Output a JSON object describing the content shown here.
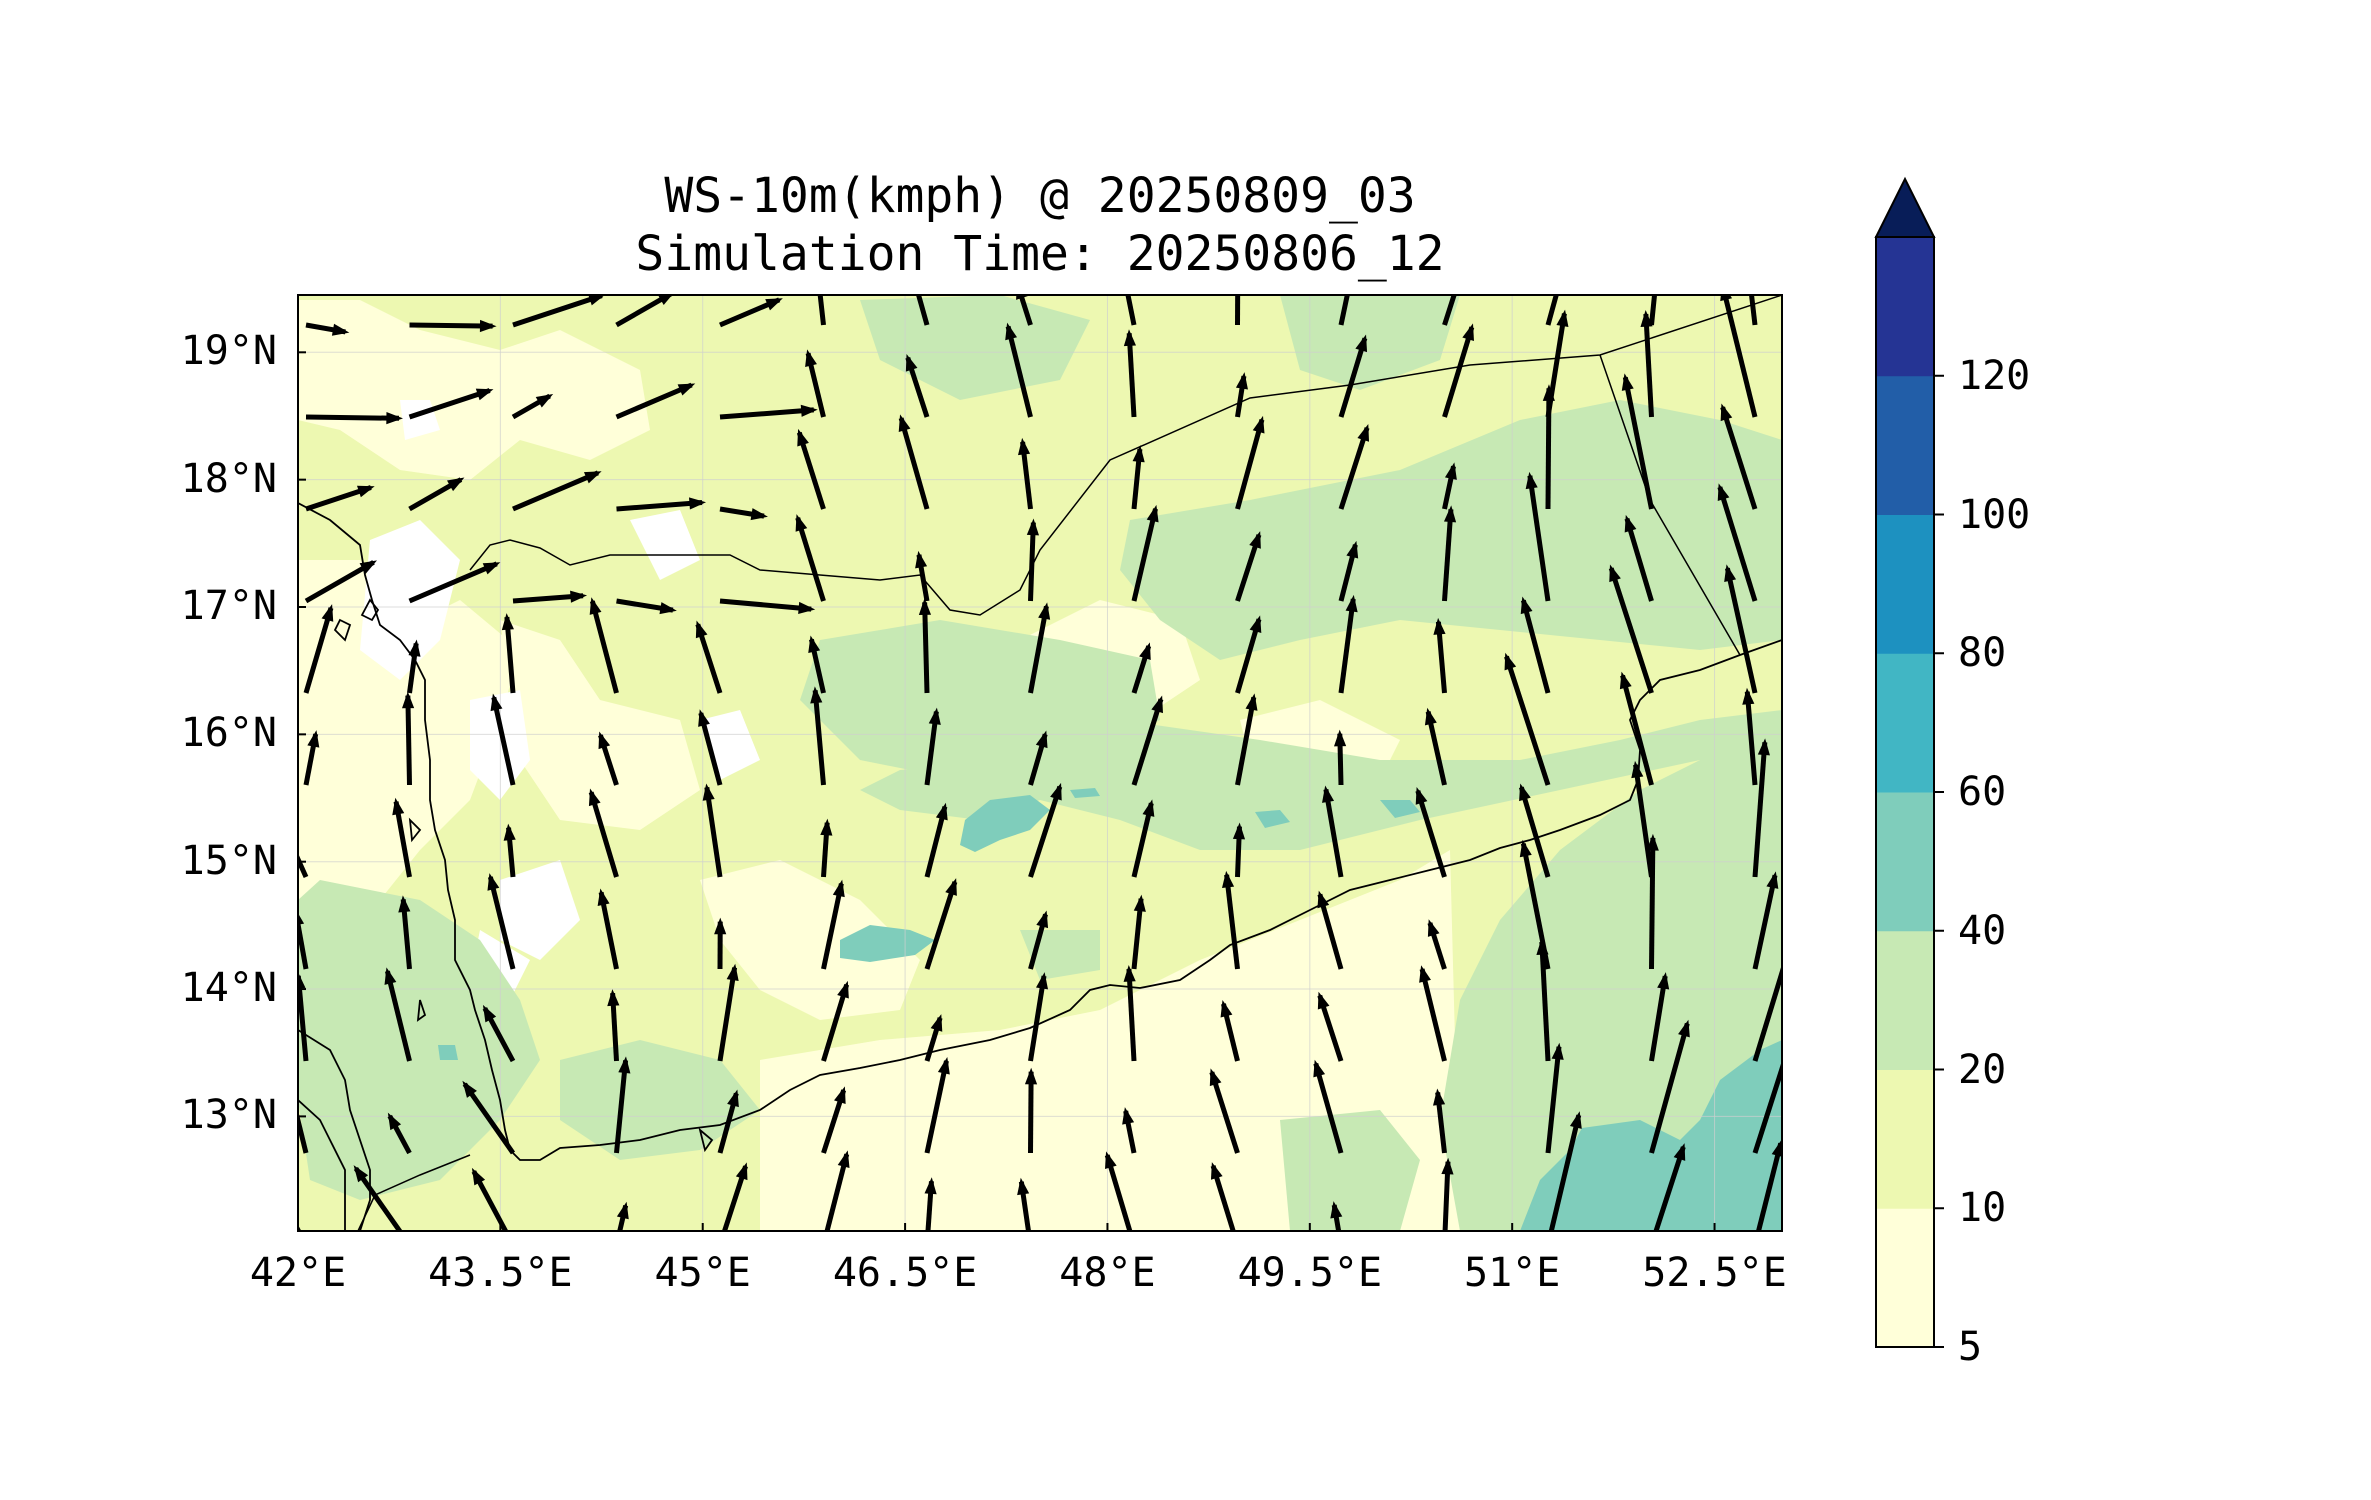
{
  "title": "WS-10m(kmph) @ 20250809_03",
  "subtitle": "Simulation Time: 20250806_12",
  "map": {
    "lon_range": [
      42.0,
      53.0
    ],
    "lat_range": [
      12.1,
      19.45
    ],
    "lon_ticks": [
      "42°E",
      "43.5°E",
      "45°E",
      "46.5°E",
      "48°E",
      "49.5°E",
      "51°E",
      "52.5°E"
    ],
    "lon_tick_values": [
      42.0,
      43.5,
      45.0,
      46.5,
      48.0,
      49.5,
      51.0,
      52.5
    ],
    "lat_ticks": [
      "13°N",
      "14°N",
      "15°N",
      "16°N",
      "17°N",
      "18°N",
      "19°N"
    ],
    "lat_tick_values": [
      13,
      14,
      15,
      16,
      17,
      18,
      19
    ],
    "grid": true
  },
  "colorbar": {
    "levels": [
      "5",
      "10",
      "20",
      "40",
      "60",
      "80",
      "100",
      "120"
    ],
    "colors": [
      "#ffffd9",
      "#edf8b1",
      "#c7e9b4",
      "#7fcdbb",
      "#41b6c4",
      "#1d91c0",
      "#225ea8",
      "#253494"
    ],
    "extend_color": "#081d58",
    "extend": "max"
  },
  "colors": {
    "land_base": "#edf8b1",
    "coast": "#000000",
    "arrow": "#000000"
  }
}
